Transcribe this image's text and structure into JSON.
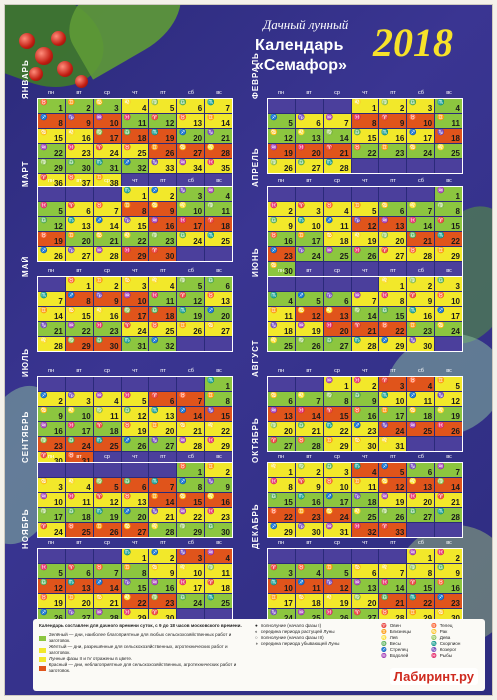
{
  "header": {
    "subtitle": "Дачный лунный",
    "title_line1": "Календарь",
    "title_line2": "«Семафор»",
    "year": "2018"
  },
  "weekdays": [
    "пн",
    "вт",
    "ср",
    "чт",
    "пт",
    "сб",
    "вс"
  ],
  "months": [
    {
      "name": "ЯНВАРЬ",
      "pattern": "gggyyyy rrrggyy yyrrrgg gyyyrrr ggggyyy yyybbbb"
    },
    {
      "name": "ФЕВРАЛЬ",
      "pattern": "bbbyyyg gyyrrrg gggyyyr rrrgggg yyybbbb"
    },
    {
      "name": "МАРТ",
      "pattern": "bbbyygg gyyrrgg gyyyrrr rggggyy yyyrrbb"
    },
    {
      "name": "АПРЕЛЬ",
      "pattern": "bbbbbbg yyyyggg yyyrrgg ggyyyrr rgggyyy gbbbbbb"
    },
    {
      "name": "МАЙ",
      "pattern": "byyyygg yrrrggy yyyrrgg gggyyyy yrrggbb"
    },
    {
      "name": "ИЮНЬ",
      "pattern": "bbbbyyy gggyyyy yrrggyy yyrrrgg gggyyyb"
    },
    {
      "name": "ИЮЛЬ",
      "pattern": "bbbbbbg yyyyrrg ggyyyrr gggyyyy rrrggyy yrbbbbb"
    },
    {
      "name": "АВГУСТ",
      "pattern": "bbyyrry ggggyyy rrrgggg yyyyrrr ggyyybb"
    },
    {
      "name": "СЕНТЯБРЬ",
      "pattern": "bbbbbgy yyrrrgg yyyyrrr ggggyyy yrrrggg"
    },
    {
      "name": "ОКТЯБРЬ",
      "pattern": "yyyrrgg yyyyrrr ggggyyy rrrgggg yyyrrbb"
    },
    {
      "name": "НОЯБРЬ",
      "pattern": "bbbyyrr ggggyyy rrrggyy yyyrrgg gggyybb"
    },
    {
      "name": "ДЕКАБРЬ",
      "pattern": "bbbbbyy gggyyyy rrrgggg yyyyrrr ggggyyy yrbbbbb"
    }
  ],
  "legend": {
    "title": "Календарь составлен для дачного времени суток, с 9 до 18 часов московского времени.",
    "green": "Зелёный — дни, наиболее благоприятные для любых сельскохозяйственных работ и заготовок.",
    "yellow": "Жёлтый — дни, разрешённые для сельскохозяйственных, агротехнических работ и заготовок.",
    "phases": "Лунные фазы II и IV отражены в цвете.",
    "red": "Красный — дни, неблагоприятные для сельскохозяйственных, агротехнических работ и заготовок.",
    "moon1": "полнолуние (начало фазы I)",
    "moon2": "середина периода растущей Луны",
    "moon3": "полнолуние (начало фазы III)",
    "moon4": "середина периода убывающей Луны",
    "zodiac": [
      "Овен",
      "Телец",
      "Близнецы",
      "Рак",
      "Лев",
      "Дева",
      "Весы",
      "Скорпион",
      "Стрелец",
      "Козерог",
      "Водолей",
      "Рыбы"
    ]
  },
  "logo": "Лабиринт.ру",
  "colors": {
    "green": "#8cc63f",
    "yellow": "#f2e82a",
    "red": "#e0541b",
    "empty": "#4b3f9c",
    "year": "#f7e22a"
  }
}
